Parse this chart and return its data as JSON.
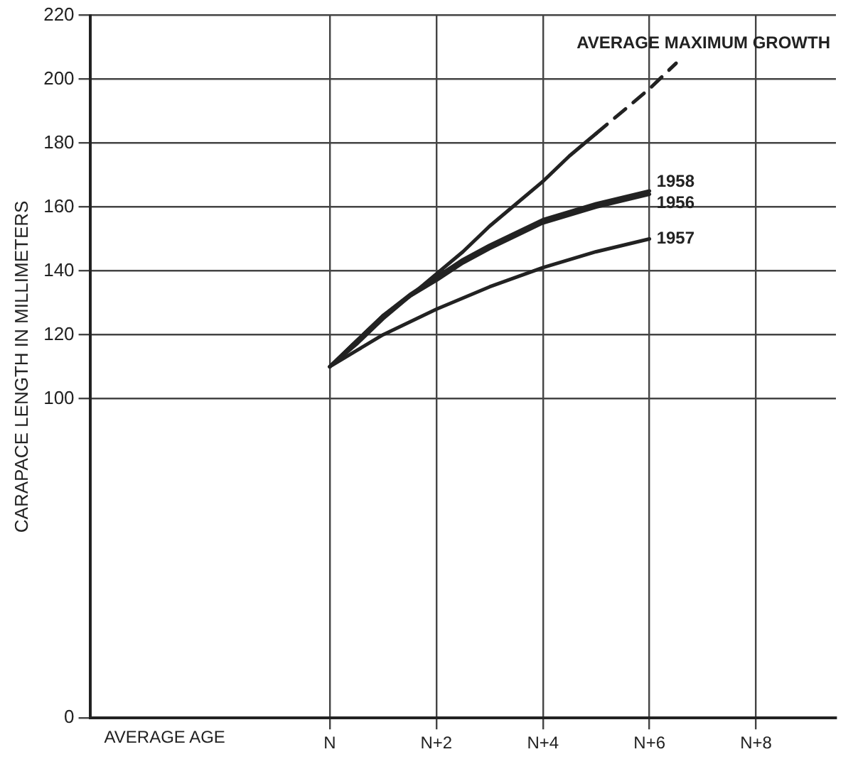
{
  "chart_data": {
    "type": "line",
    "ylabel": "CARAPACE LENGTH IN MILLIMETERS",
    "xlabel": "AVERAGE AGE",
    "categories": [
      null,
      null,
      null,
      null,
      null,
      null,
      null,
      null,
      null,
      "N",
      null,
      null,
      null,
      "N+2",
      null,
      null,
      null,
      "N+4",
      null,
      null,
      null,
      "N+6",
      null,
      null,
      null,
      "N+8",
      null,
      null,
      null
    ],
    "ylim": [
      0,
      220
    ],
    "yticks": [
      0,
      100,
      120,
      140,
      160,
      180,
      200,
      220
    ],
    "grid": true,
    "legend": false,
    "marker": "none",
    "series": [
      {
        "color": "#222222",
        "line_style": "solid",
        "values": [
          null,
          null,
          null,
          null,
          null,
          null,
          null,
          null,
          null,
          110,
          117,
          125,
          132,
          139,
          146,
          154,
          161,
          168,
          176,
          183,
          null,
          null,
          null,
          null,
          null,
          null,
          null,
          null,
          null
        ]
      },
      {
        "name": "AVERAGE MAXIMUM GROWTH",
        "color": "#222222",
        "line_style": "dashed",
        "values": [
          null,
          null,
          null,
          null,
          null,
          null,
          null,
          null,
          null,
          null,
          null,
          null,
          null,
          null,
          null,
          null,
          null,
          null,
          null,
          183,
          190,
          197,
          205,
          null,
          null,
          null,
          null,
          null,
          null
        ]
      },
      {
        "name": "1958",
        "color": "#222222",
        "line_style": "solid",
        "values": [
          null,
          null,
          null,
          null,
          null,
          null,
          null,
          null,
          null,
          110,
          118,
          126,
          132.5,
          138,
          143.5,
          148,
          152,
          156,
          158.5,
          161,
          163,
          165,
          null,
          null,
          null,
          null,
          null,
          null,
          null
        ]
      },
      {
        "name": "1956",
        "color": "#222222",
        "line_style": "solid",
        "values": [
          null,
          null,
          null,
          null,
          null,
          null,
          null,
          null,
          null,
          110,
          118,
          126,
          132,
          137,
          142.5,
          147,
          151,
          155,
          157.5,
          160,
          162,
          164,
          null,
          null,
          null,
          null,
          null,
          null,
          null
        ]
      },
      {
        "name": "1957",
        "color": "#222222",
        "line_style": "solid",
        "values": [
          null,
          null,
          null,
          null,
          null,
          null,
          null,
          null,
          null,
          110,
          115,
          120,
          124,
          128,
          131.5,
          135,
          138,
          141,
          143.5,
          146,
          148,
          150,
          null,
          null,
          null,
          null,
          null,
          null,
          null
        ]
      }
    ]
  }
}
